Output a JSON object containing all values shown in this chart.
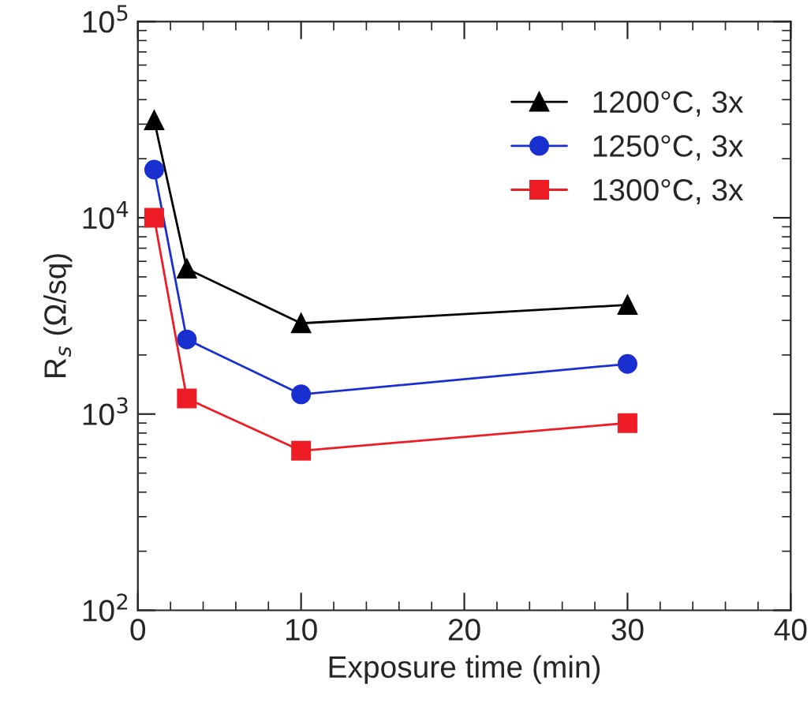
{
  "chart_data": {
    "type": "line",
    "xlabel": "Exposure time (min)",
    "ylabel": "R$_{s}$ (Ω/sq)",
    "x": [
      1,
      3,
      10,
      30
    ],
    "series": [
      {
        "name": "1200°C, 3x",
        "color": "#000000",
        "marker": "triangle",
        "values": [
          31400,
          5500,
          2900,
          3600
        ]
      },
      {
        "name": "1250°C, 3x",
        "color": "#1a2fd0",
        "marker": "circle",
        "values": [
          17600,
          2400,
          1260,
          1800
        ]
      },
      {
        "name": "1300°C, 3x",
        "color": "#ee1c24",
        "marker": "square",
        "values": [
          10000,
          1200,
          650,
          900
        ]
      }
    ],
    "log": "y",
    "xlim": [
      0,
      40
    ],
    "xticks": [
      0,
      10,
      20,
      30,
      40
    ],
    "ylim": [
      100,
      100000
    ],
    "yticks": [
      {
        "value": 100,
        "label": "10$^{2}$"
      },
      {
        "value": 1000,
        "label": "10$^{3}$"
      },
      {
        "value": 10000,
        "label": "10$^{4}$"
      },
      {
        "value": 100000,
        "label": "10$^{5}$"
      }
    ],
    "legend": "top right",
    "grid": false,
    "line_style": "solid"
  }
}
